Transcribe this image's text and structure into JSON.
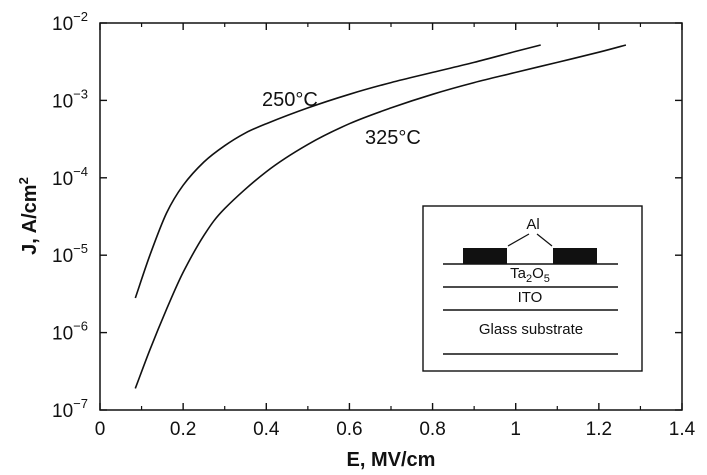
{
  "chart_data": {
    "type": "line",
    "xlabel": "E, MV/cm",
    "ylabel_main": "J, A/cm",
    "ylabel_sup": "2",
    "xlim": [
      0,
      1.4
    ],
    "ylim": [
      1e-07,
      0.01
    ],
    "yscale": "log",
    "grid": false,
    "x_ticks": [
      "0",
      "0.2",
      "0.4",
      "0.6",
      "0.8",
      "1",
      "1.2",
      "1.4"
    ],
    "y_ticks": [
      {
        "base": "10",
        "exp": "−7"
      },
      {
        "base": "10",
        "exp": "−6"
      },
      {
        "base": "10",
        "exp": "−5"
      },
      {
        "base": "10",
        "exp": "−4"
      },
      {
        "base": "10",
        "exp": "−3"
      },
      {
        "base": "10",
        "exp": "−2"
      }
    ],
    "series": [
      {
        "name": "250°C",
        "x": [
          0.085,
          0.12,
          0.16,
          0.2,
          0.25,
          0.3,
          0.35,
          0.4,
          0.5,
          0.6,
          0.7,
          0.8,
          0.9,
          1.0,
          1.06
        ],
        "y": [
          2.8e-06,
          1e-05,
          3.5e-05,
          8e-05,
          0.00016,
          0.00026,
          0.00038,
          0.0005,
          0.0008,
          0.0012,
          0.0017,
          0.0023,
          0.0031,
          0.0043,
          0.0052
        ]
      },
      {
        "name": "325°C",
        "x": [
          0.085,
          0.12,
          0.16,
          0.2,
          0.25,
          0.3,
          0.4,
          0.5,
          0.6,
          0.7,
          0.8,
          0.9,
          1.0,
          1.1,
          1.2,
          1.265
        ],
        "y": [
          1.9e-07,
          6e-07,
          2e-06,
          6e-06,
          1.8e-05,
          4e-05,
          0.00012,
          0.00027,
          0.0005,
          0.0008,
          0.0012,
          0.0017,
          0.0023,
          0.0031,
          0.0042,
          0.0052
        ]
      }
    ],
    "inset": {
      "label_al": "Al",
      "label_ta": "Ta",
      "label_ta_sub1": "2",
      "label_o": "O",
      "label_ta_sub2": "5",
      "label_ito": "ITO",
      "label_glass": "Glass substrate"
    }
  }
}
